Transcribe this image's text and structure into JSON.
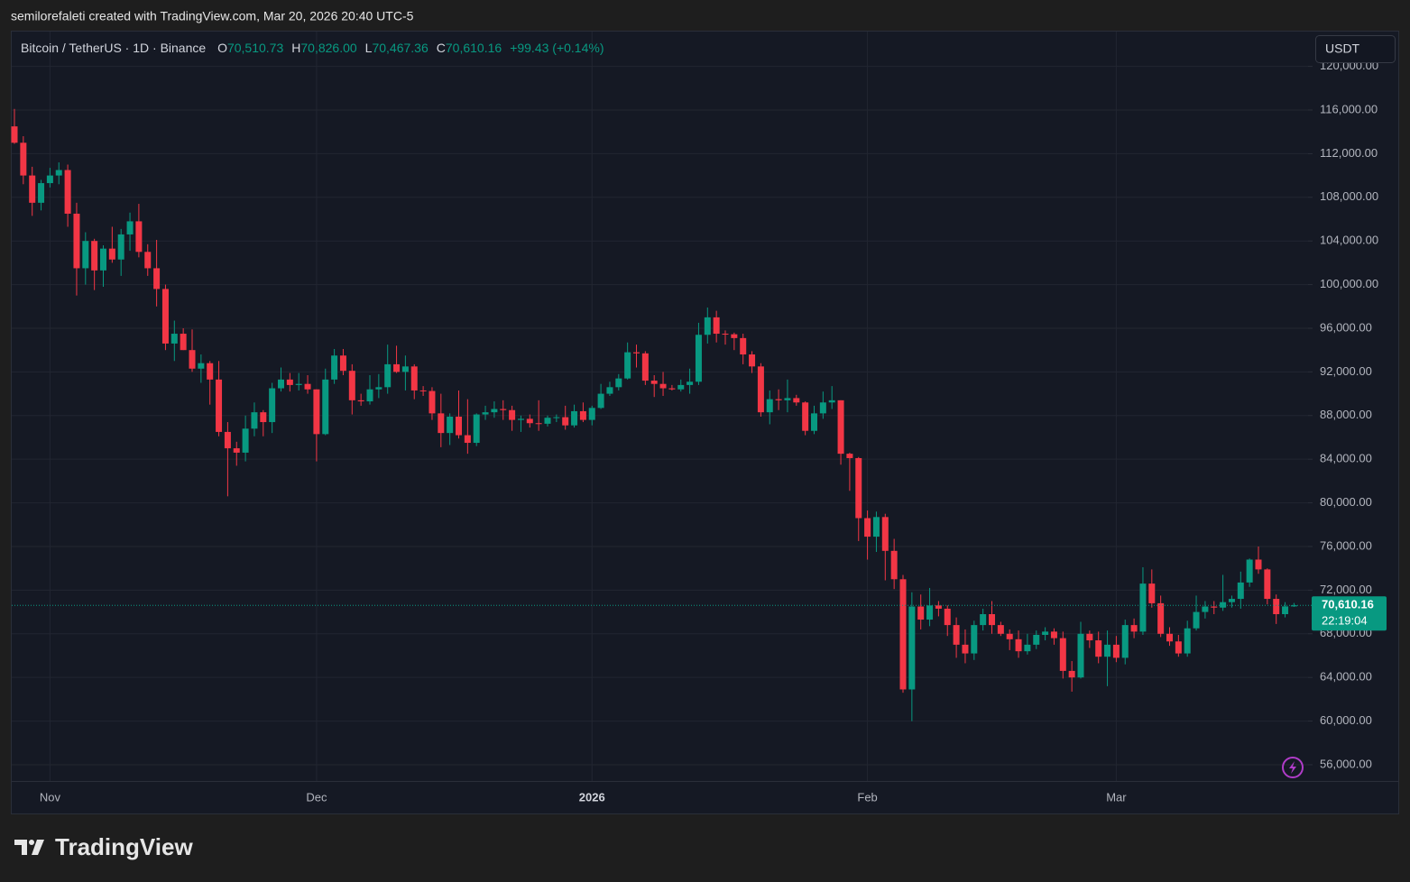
{
  "attribution": "semilorefaleti created with TradingView.com, Mar 20, 2026 20:40 UTC-5",
  "logo": "TradingView",
  "currency_button": "USDT",
  "chart_data": {
    "type": "candlestick",
    "legend": {
      "symbol": "Bitcoin / TetherUS · 1D · Binance",
      "items": [
        {
          "label": "O",
          "value": "70,510.73"
        },
        {
          "label": "H",
          "value": "70,826.00"
        },
        {
          "label": "L",
          "value": "70,467.36"
        },
        {
          "label": "C",
          "value": "70,610.16"
        }
      ],
      "change": "+99.43 (+0.14%)"
    },
    "up_color": "#089981",
    "down_color": "#f23645",
    "categories": [
      null,
      null,
      null,
      null,
      "Nov",
      null,
      null,
      null,
      null,
      null,
      null,
      null,
      null,
      null,
      null,
      null,
      null,
      null,
      null,
      null,
      null,
      null,
      null,
      null,
      null,
      null,
      null,
      null,
      null,
      null,
      null,
      null,
      null,
      null,
      "Dec",
      null,
      null,
      null,
      null,
      null,
      null,
      null,
      null,
      null,
      null,
      null,
      null,
      null,
      null,
      null,
      null,
      null,
      null,
      null,
      null,
      null,
      null,
      null,
      null,
      null,
      null,
      null,
      null,
      null,
      null,
      "2026",
      null,
      null,
      null,
      null,
      null,
      null,
      null,
      null,
      null,
      null,
      null,
      null,
      null,
      null,
      null,
      null,
      null,
      null,
      null,
      null,
      null,
      null,
      null,
      null,
      null,
      null,
      null,
      null,
      null,
      null,
      "Feb",
      null,
      null,
      null,
      null,
      null,
      null,
      null,
      null,
      null,
      null,
      null,
      null,
      null,
      null,
      null,
      null,
      null,
      null,
      null,
      null,
      null,
      null,
      null,
      null,
      null,
      null,
      null,
      "Mar",
      null,
      null,
      null,
      null,
      null,
      null,
      null,
      null,
      null,
      null,
      null,
      null,
      null,
      null,
      null,
      null,
      null,
      null,
      null,
      null
    ],
    "open": [
      114500,
      113000,
      110000,
      107500,
      109300,
      110000,
      110500,
      106500,
      101500,
      104000,
      101300,
      103300,
      102300,
      104600,
      105800,
      103000,
      101500,
      99600,
      94600,
      95500,
      94000,
      92300,
      92800,
      91300,
      86500,
      85000,
      84600,
      86800,
      88300,
      87400,
      90500,
      91300,
      90800,
      90900,
      90400,
      86300,
      91300,
      93500,
      92100,
      89400,
      89300,
      90400,
      90600,
      92700,
      92000,
      92500,
      90300,
      90250,
      88200,
      86400,
      87900,
      86200,
      85500,
      88100,
      88300,
      88600,
      88500,
      87600,
      87700,
      87300,
      87250,
      87800,
      87850,
      87100,
      88400,
      87600,
      88700,
      90000,
      90600,
      91400,
      93800,
      93700,
      91200,
      90900,
      90500,
      90400,
      90800,
      91100,
      95400,
      97000,
      95500,
      95450,
      95100,
      93600,
      92500,
      88300,
      89500,
      89400,
      89600,
      89200,
      86600,
      88200,
      89200,
      89400,
      84500,
      84100,
      78600,
      76900,
      78700,
      75600,
      73000,
      62900,
      70500,
      69300,
      70600,
      70300,
      68800,
      67000,
      66200,
      68800,
      69800,
      68800,
      68000,
      67500,
      66400,
      67000,
      67900,
      68200,
      67600,
      64600,
      64000,
      68000,
      67400,
      65900,
      67000,
      65800,
      68800,
      68200,
      72600,
      70800,
      68000,
      67300,
      66200,
      68500,
      70000,
      70500,
      70400,
      70900,
      71200,
      72700,
      74800,
      73900,
      71200,
      69800,
      70510.73
    ],
    "high": [
      116100,
      113600,
      110800,
      109600,
      110700,
      111200,
      111000,
      107500,
      104800,
      104200,
      103600,
      105300,
      105100,
      106600,
      107400,
      103700,
      104100,
      100000,
      96700,
      96000,
      95900,
      93600,
      93000,
      93000,
      87400,
      85600,
      88000,
      89200,
      88500,
      91000,
      92400,
      91900,
      91900,
      91700,
      90400,
      92300,
      94100,
      94100,
      92700,
      90000,
      91700,
      91800,
      94500,
      94400,
      93500,
      92700,
      90700,
      90600,
      90000,
      88200,
      90300,
      89500,
      88200,
      88900,
      89300,
      89400,
      88900,
      88000,
      88100,
      89400,
      88000,
      88100,
      88900,
      89000,
      89200,
      88900,
      90900,
      91100,
      91800,
      94700,
      94500,
      93900,
      91700,
      92000,
      90800,
      91300,
      92300,
      96500,
      97900,
      97600,
      95800,
      95600,
      95500,
      93900,
      92800,
      90300,
      90400,
      91300,
      89900,
      89300,
      88900,
      90200,
      90700,
      89400,
      84600,
      84200,
      79300,
      79200,
      79000,
      76700,
      73400,
      71800,
      71600,
      72200,
      71000,
      70600,
      69500,
      68400,
      69200,
      70300,
      71000,
      69100,
      68400,
      68300,
      68000,
      68300,
      68600,
      68500,
      68200,
      65500,
      69100,
      68300,
      68200,
      68300,
      67800,
      69300,
      69400,
      74100,
      73900,
      71500,
      68600,
      67900,
      69200,
      71500,
      71000,
      71000,
      73400,
      71500,
      73700,
      74900,
      76000,
      74000,
      71600,
      70900,
      70826
    ],
    "low": [
      112900,
      109200,
      106300,
      106800,
      108900,
      109200,
      105300,
      99000,
      100000,
      99500,
      99800,
      102000,
      100800,
      103100,
      102500,
      100800,
      98000,
      94000,
      93000,
      94000,
      92000,
      91000,
      89000,
      86100,
      80600,
      83400,
      83800,
      86100,
      86100,
      86400,
      90200,
      90200,
      90300,
      90000,
      83800,
      86200,
      90900,
      91700,
      88100,
      88900,
      89000,
      89600,
      90000,
      91900,
      90300,
      89500,
      89800,
      87600,
      85100,
      85300,
      85900,
      84500,
      85200,
      87600,
      87800,
      87600,
      86600,
      86500,
      86900,
      86600,
      87000,
      87400,
      86700,
      86900,
      87400,
      87100,
      88600,
      89800,
      90300,
      91300,
      92400,
      90800,
      89700,
      89800,
      90300,
      90200,
      90000,
      90800,
      94600,
      94700,
      94500,
      94000,
      92700,
      91900,
      87900,
      87200,
      88500,
      88300,
      88900,
      86200,
      86300,
      87700,
      88600,
      83500,
      81100,
      76500,
      74800,
      75500,
      72900,
      72100,
      62600,
      60000,
      68400,
      68700,
      69600,
      67800,
      65800,
      65300,
      65600,
      68300,
      68000,
      67800,
      66500,
      65800,
      66100,
      66600,
      67400,
      67000,
      63900,
      62700,
      63900,
      66700,
      65300,
      63200,
      65400,
      65200,
      67600,
      67900,
      70400,
      67700,
      66900,
      65900,
      65900,
      68300,
      69400,
      69800,
      70100,
      70400,
      70300,
      72300,
      73500,
      70700,
      68900,
      69500,
      70467.36
    ],
    "close": [
      113000,
      110000,
      107500,
      109300,
      110000,
      110500,
      106500,
      101500,
      104000,
      101300,
      103300,
      102300,
      104600,
      105800,
      103000,
      101500,
      99600,
      94600,
      95500,
      94000,
      92300,
      92800,
      91300,
      86500,
      85000,
      84600,
      86800,
      88300,
      87400,
      90500,
      91300,
      90800,
      90900,
      90400,
      86300,
      91300,
      93500,
      92100,
      89400,
      89300,
      90400,
      90600,
      92700,
      92000,
      92500,
      90300,
      90250,
      88200,
      86400,
      87900,
      86200,
      85500,
      88100,
      88300,
      88600,
      88500,
      87600,
      87700,
      87300,
      87250,
      87800,
      87850,
      87100,
      88400,
      87600,
      88700,
      90000,
      90600,
      91400,
      93800,
      93700,
      91200,
      90900,
      90500,
      90400,
      90800,
      91100,
      95400,
      97000,
      95500,
      95450,
      95100,
      93600,
      92500,
      88300,
      89500,
      89400,
      89600,
      89200,
      86600,
      88200,
      89200,
      89400,
      84500,
      84100,
      78600,
      76900,
      78700,
      75600,
      73000,
      62900,
      70500,
      69300,
      70600,
      70300,
      68800,
      67000,
      66200,
      68800,
      69800,
      68800,
      68000,
      67500,
      66400,
      67000,
      67900,
      68200,
      67600,
      64600,
      64000,
      68000,
      67400,
      65900,
      67000,
      65800,
      68800,
      68200,
      72600,
      70800,
      68000,
      67300,
      66200,
      68500,
      70000,
      70500,
      70400,
      70900,
      71200,
      72700,
      74800,
      73900,
      71200,
      69800,
      70510.73,
      70610.16
    ],
    "last_price_label": "70,610.16",
    "countdown": "22:19:04",
    "ylim": [
      54510,
      123190
    ],
    "yticks": [
      {
        "value": 120000,
        "label": "120,000.00"
      },
      {
        "value": 116000,
        "label": "116,000.00"
      },
      {
        "value": 112000,
        "label": "112,000.00"
      },
      {
        "value": 108000,
        "label": "108,000.00"
      },
      {
        "value": 104000,
        "label": "104,000.00"
      },
      {
        "value": 100000,
        "label": "100,000.00"
      },
      {
        "value": 96000,
        "label": "96,000.00"
      },
      {
        "value": 92000,
        "label": "92,000.00"
      },
      {
        "value": 88000,
        "label": "88,000.00"
      },
      {
        "value": 84000,
        "label": "84,000.00"
      },
      {
        "value": 80000,
        "label": "80,000.00"
      },
      {
        "value": 76000,
        "label": "76,000.00"
      },
      {
        "value": 72000,
        "label": "72,000.00"
      },
      {
        "value": 68000,
        "label": "68,000.00"
      },
      {
        "value": 64000,
        "label": "64,000.00"
      },
      {
        "value": 60000,
        "label": "60,000.00"
      },
      {
        "value": 56000,
        "label": "56,000.00"
      }
    ],
    "grid": true
  }
}
